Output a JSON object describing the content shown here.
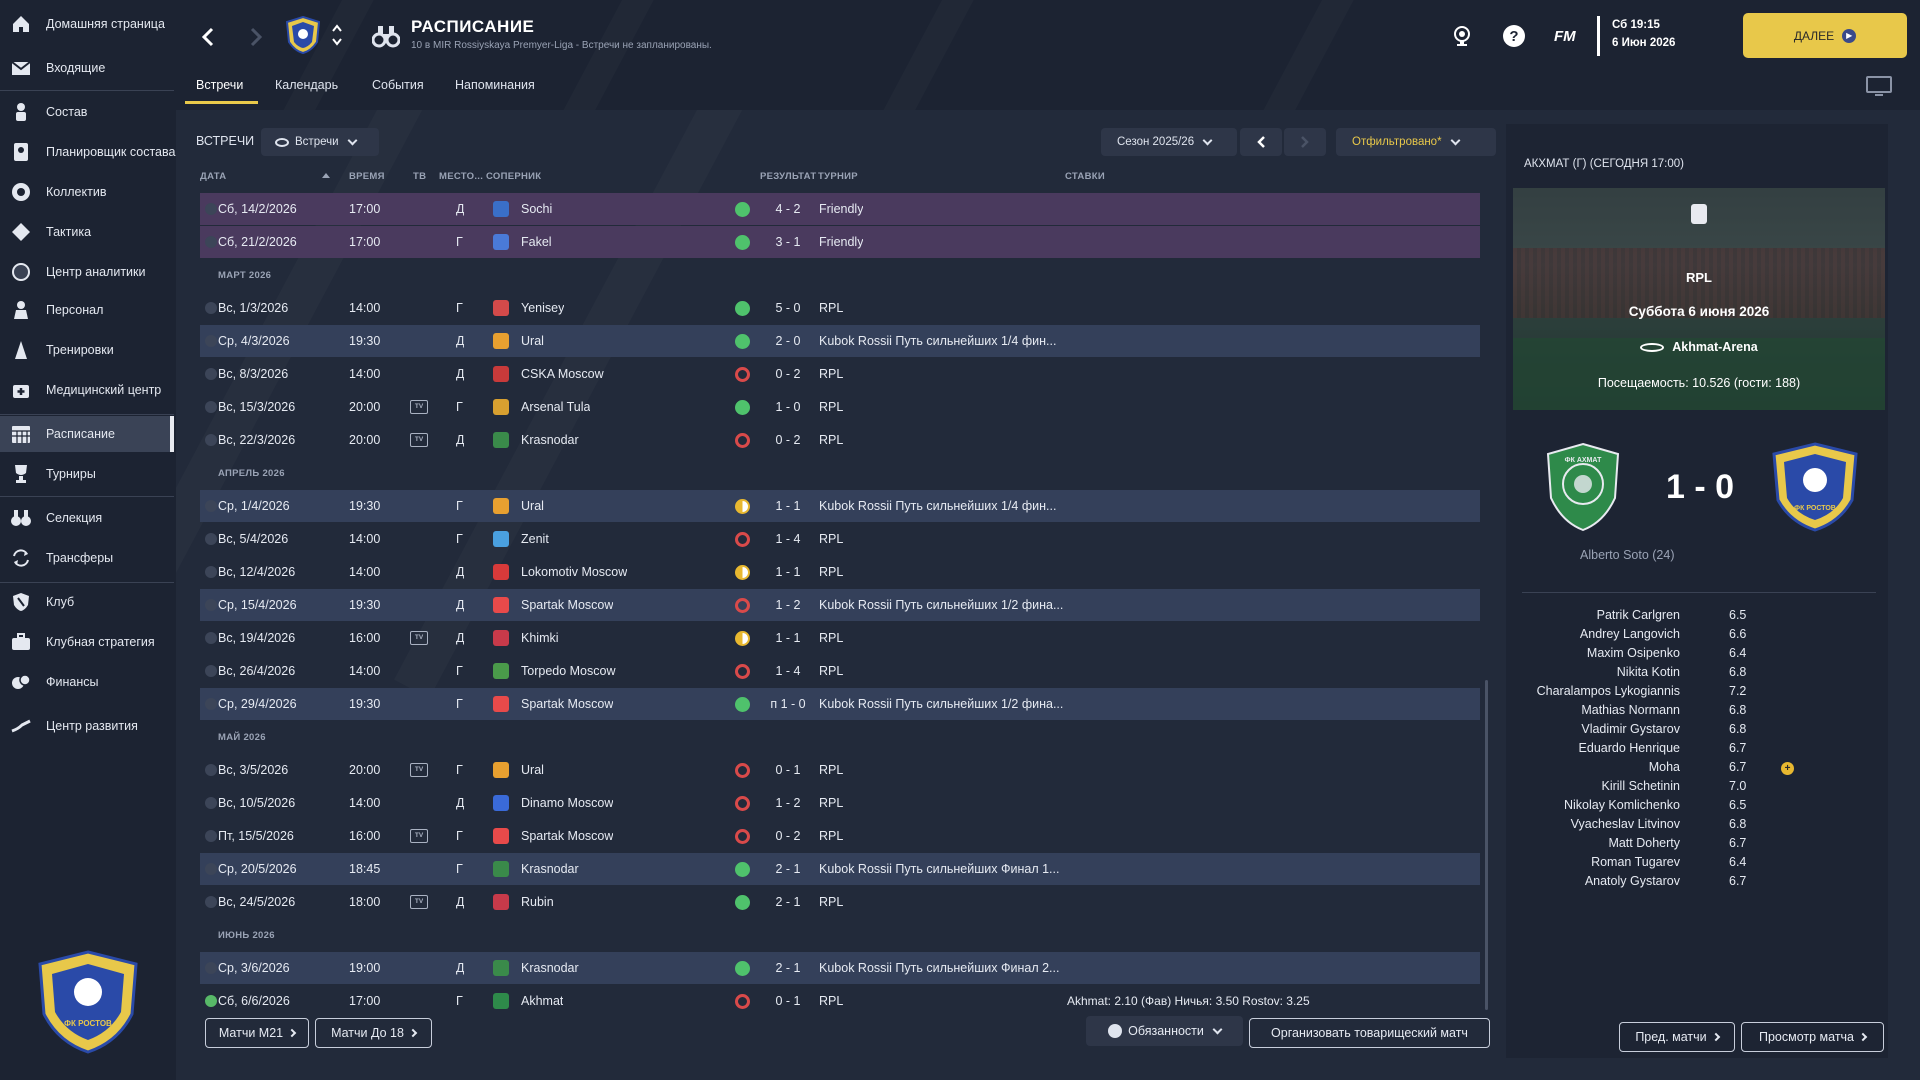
{
  "sidebar": {
    "items": [
      {
        "label": "Домашняя страница",
        "icon": "home-icon"
      },
      {
        "label": "Входящие",
        "icon": "inbox-icon"
      },
      {
        "label": "Состав",
        "icon": "squad-icon"
      },
      {
        "label": "Планировщик состава",
        "icon": "squad-planner-icon"
      },
      {
        "label": "Коллектив",
        "icon": "dynamics-icon"
      },
      {
        "label": "Тактика",
        "icon": "tactics-icon"
      },
      {
        "label": "Центр аналитики",
        "icon": "analytics-icon"
      },
      {
        "label": "Персонал",
        "icon": "staff-icon"
      },
      {
        "label": "Тренировки",
        "icon": "training-icon"
      },
      {
        "label": "Медицинский центр",
        "icon": "medical-icon"
      },
      {
        "label": "Расписание",
        "icon": "schedule-icon"
      },
      {
        "label": "Турниры",
        "icon": "trophy-icon"
      },
      {
        "label": "Селекция",
        "icon": "scouting-icon"
      },
      {
        "label": "Трансферы",
        "icon": "transfers-icon"
      },
      {
        "label": "Клуб",
        "icon": "club-icon"
      },
      {
        "label": "Клубная стратегия",
        "icon": "strategy-icon"
      },
      {
        "label": "Финансы",
        "icon": "finances-icon"
      },
      {
        "label": "Центр развития",
        "icon": "development-icon"
      }
    ],
    "active_index": 10
  },
  "header": {
    "title": "РАСПИСАНИЕ",
    "subtitle": "10 в MIR Rossiyskaya Premyer-Liga - Встречи не запланированы.",
    "tabs": [
      "Встречи",
      "Календарь",
      "События",
      "Напоминания"
    ],
    "active_tab": 0,
    "brand": "FM",
    "date_line1": "Сб 19:15",
    "date_line2": "6 Июн 2026",
    "continue_label": "ДАЛЕЕ"
  },
  "filters": {
    "section_label": "ВСТРЕЧИ",
    "view_dropdown": "Встречи",
    "season": "Сезон 2025/26",
    "filter_label": "Отфильтровано*"
  },
  "table": {
    "columns": {
      "date": "ДАТА",
      "time": "ВРЕМЯ",
      "tv": "ТВ",
      "venue": "МЕСТО...",
      "opponent": "СОПЕРНИК",
      "result": "РЕЗУЛЬТАТ",
      "competition": "ТУРНИР",
      "odds": "СТАВКИ"
    },
    "tv_badge": "TV",
    "months": [
      "МАРТ 2026",
      "АПРЕЛЬ 2026",
      "МАЙ 2026",
      "ИЮНЬ 2026"
    ],
    "rows": [
      {
        "date": "Сб, 14/2/2026",
        "time": "17:00",
        "tv": false,
        "venue": "Д",
        "opponent": "Sochi",
        "crest": "#3a6fc8",
        "outcome": "win",
        "score": "4 - 2",
        "competition": "Friendly",
        "odds": ""
      },
      {
        "date": "Сб, 21/2/2026",
        "time": "17:00",
        "tv": false,
        "venue": "Г",
        "opponent": "Fakel",
        "crest": "#4a7ad8",
        "outcome": "win",
        "score": "3 - 1",
        "competition": "Friendly",
        "odds": ""
      },
      {
        "date": "Вс, 1/3/2026",
        "time": "14:00",
        "tv": false,
        "venue": "Г",
        "opponent": "Yenisey",
        "crest": "#d44a4a",
        "outcome": "win",
        "score": "5 - 0",
        "competition": "RPL",
        "odds": ""
      },
      {
        "date": "Ср, 4/3/2026",
        "time": "19:30",
        "tv": false,
        "venue": "Д",
        "opponent": "Ural",
        "crest": "#e8a030",
        "outcome": "win",
        "score": "2 - 0",
        "competition": "Kubok Rossii Путь сильнейших 1/4 фин...",
        "odds": ""
      },
      {
        "date": "Вс, 8/3/2026",
        "time": "14:00",
        "tv": false,
        "venue": "Д",
        "opponent": "CSKA Moscow",
        "crest": "#c83a3a",
        "outcome": "loss",
        "score": "0 - 2",
        "competition": "RPL",
        "odds": ""
      },
      {
        "date": "Вс, 15/3/2026",
        "time": "20:00",
        "tv": true,
        "venue": "Г",
        "opponent": "Arsenal Tula",
        "crest": "#d8a030",
        "outcome": "win",
        "score": "1 - 0",
        "competition": "RPL",
        "odds": ""
      },
      {
        "date": "Вс, 22/3/2026",
        "time": "20:00",
        "tv": true,
        "venue": "Д",
        "opponent": "Krasnodar",
        "crest": "#3a8a4a",
        "outcome": "loss",
        "score": "0 - 2",
        "competition": "RPL",
        "odds": ""
      },
      {
        "date": "Ср, 1/4/2026",
        "time": "19:30",
        "tv": false,
        "venue": "Г",
        "opponent": "Ural",
        "crest": "#e8a030",
        "outcome": "draw",
        "score": "1 - 1",
        "competition": "Kubok Rossii Путь сильнейших 1/4 фин...",
        "odds": ""
      },
      {
        "date": "Вс, 5/4/2026",
        "time": "14:00",
        "tv": false,
        "venue": "Г",
        "opponent": "Zenit",
        "crest": "#4aa0e0",
        "outcome": "loss",
        "score": "1 - 4",
        "competition": "RPL",
        "odds": ""
      },
      {
        "date": "Вс, 12/4/2026",
        "time": "14:00",
        "tv": false,
        "venue": "Д",
        "opponent": "Lokomotiv Moscow",
        "crest": "#d83a3a",
        "outcome": "draw",
        "score": "1 - 1",
        "competition": "RPL",
        "odds": ""
      },
      {
        "date": "Ср, 15/4/2026",
        "time": "19:30",
        "tv": false,
        "venue": "Д",
        "opponent": "Spartak Moscow",
        "crest": "#e84a4a",
        "outcome": "loss",
        "score": "1 - 2",
        "competition": "Kubok Rossii Путь сильнейших 1/2 фина...",
        "odds": ""
      },
      {
        "date": "Вс, 19/4/2026",
        "time": "16:00",
        "tv": true,
        "venue": "Д",
        "opponent": "Khimki",
        "crest": "#c83a4a",
        "outcome": "draw",
        "score": "1 - 1",
        "competition": "RPL",
        "odds": ""
      },
      {
        "date": "Вс, 26/4/2026",
        "time": "14:00",
        "tv": false,
        "venue": "Г",
        "opponent": "Torpedo Moscow",
        "crest": "#4a9a4a",
        "outcome": "loss",
        "score": "1 - 4",
        "competition": "RPL",
        "odds": ""
      },
      {
        "date": "Ср, 29/4/2026",
        "time": "19:30",
        "tv": false,
        "venue": "Г",
        "opponent": "Spartak Moscow",
        "crest": "#e84a4a",
        "outcome": "win",
        "score": "п 1 - 0",
        "competition": "Kubok Rossii Путь сильнейших 1/2 фина...",
        "odds": ""
      },
      {
        "date": "Вс, 3/5/2026",
        "time": "20:00",
        "tv": true,
        "venue": "Г",
        "opponent": "Ural",
        "crest": "#e8a030",
        "outcome": "loss",
        "score": "0 - 1",
        "competition": "RPL",
        "odds": ""
      },
      {
        "date": "Вс, 10/5/2026",
        "time": "14:00",
        "tv": false,
        "venue": "Д",
        "opponent": "Dinamo Moscow",
        "crest": "#3a6ad8",
        "outcome": "loss",
        "score": "1 - 2",
        "competition": "RPL",
        "odds": ""
      },
      {
        "date": "Пт, 15/5/2026",
        "time": "16:00",
        "tv": true,
        "venue": "Г",
        "opponent": "Spartak Moscow",
        "crest": "#e84a4a",
        "outcome": "loss",
        "score": "0 - 2",
        "competition": "RPL",
        "odds": ""
      },
      {
        "date": "Ср, 20/5/2026",
        "time": "18:45",
        "tv": false,
        "venue": "Г",
        "opponent": "Krasnodar",
        "crest": "#3a8a4a",
        "outcome": "win",
        "score": "2 - 1",
        "competition": "Kubok Rossii Путь сильнейших Финал 1...",
        "odds": ""
      },
      {
        "date": "Вс, 24/5/2026",
        "time": "18:00",
        "tv": true,
        "venue": "Д",
        "opponent": "Rubin",
        "crest": "#c83a4a",
        "outcome": "win",
        "score": "2 - 1",
        "competition": "RPL",
        "odds": ""
      },
      {
        "date": "Ср, 3/6/2026",
        "time": "19:00",
        "tv": false,
        "venue": "Д",
        "opponent": "Krasnodar",
        "crest": "#3a8a4a",
        "outcome": "win",
        "score": "2 - 1",
        "competition": "Kubok Rossii Путь сильнейших Финал 2...",
        "odds": ""
      },
      {
        "date": "Сб, 6/6/2026",
        "time": "17:00",
        "tv": false,
        "venue": "Г",
        "opponent": "Akhmat",
        "crest": "#2e8a4a",
        "outcome": "loss",
        "score": "0 - 1",
        "competition": "RPL",
        "odds": "Akhmat: 2.10 (Фав)  Ничья: 3.50  Rostov: 3.25"
      }
    ]
  },
  "bottom_buttons": {
    "u21": "Матчи М21",
    "u18": "Матчи До 18",
    "duties": "Обязанности",
    "arrange": "Организовать товарищеский матч",
    "prev_matches": "Пред. матчи",
    "view_match": "Просмотр матча"
  },
  "match_panel": {
    "title": "АКХМАТ (Г) (СЕГОДНЯ 17:00)",
    "competition": "RPL",
    "date": "Суббота 6 июня 2026",
    "stadium": "Akhmat-Arena",
    "attendance": "Посещаемость: 10.526 (гости: 188)",
    "score": "1 - 0",
    "scorer": "Alberto Soto (24)",
    "home_crest_text": "ФК АХМАТ",
    "away_crest_text": "ФК РОСТОВ",
    "players": [
      {
        "name": "Patrik Carlgren",
        "rating": "6.5"
      },
      {
        "name": "Andrey Langovich",
        "rating": "6.6"
      },
      {
        "name": "Maxim Osipenko",
        "rating": "6.4"
      },
      {
        "name": "Nikita Kotin",
        "rating": "6.8"
      },
      {
        "name": "Charalampos Lykogiannis",
        "rating": "7.2"
      },
      {
        "name": "Mathias Normann",
        "rating": "6.8"
      },
      {
        "name": "Vladimir Gystarov",
        "rating": "6.8"
      },
      {
        "name": "Eduardo Henrique",
        "rating": "6.7"
      },
      {
        "name": "Moha",
        "rating": "6.7"
      },
      {
        "name": "Kirill Schetinin",
        "rating": "7.0"
      },
      {
        "name": "Nikolay Komlichenko",
        "rating": "6.5"
      },
      {
        "name": "Vyacheslav Litvinov",
        "rating": "6.8"
      },
      {
        "name": "Matt Doherty",
        "rating": "6.7"
      },
      {
        "name": "Roman Tugarev",
        "rating": "6.4"
      },
      {
        "name": "Anatoly Gystarov",
        "rating": "6.7"
      }
    ]
  },
  "club_crest_text": "ФК РОСТОВ",
  "colors": {
    "accent": "#e8c84a",
    "win": "#4fc26c",
    "loss": "#d94a4a",
    "draw": "#e8b830",
    "background": "#222a3a",
    "sidebar": "#1c2332"
  }
}
